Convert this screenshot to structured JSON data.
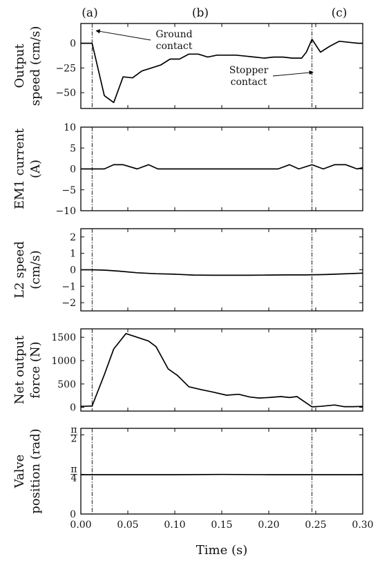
{
  "figure": {
    "xlabel": "Time (s)",
    "segment_labels": [
      "(a)",
      "(b)",
      "(c)"
    ],
    "xlim": [
      0.0,
      0.3
    ],
    "xticks": [
      0.0,
      0.05,
      0.1,
      0.15,
      0.2,
      0.25,
      0.3
    ],
    "xticklabels": [
      "0.00",
      "0.05",
      "0.10",
      "0.15",
      "0.20",
      "0.25",
      "0.30"
    ],
    "event_lines_x": [
      0.012,
      0.246
    ],
    "annotations": [
      {
        "text_lines": [
          "Ground",
          "contact"
        ],
        "arrow_to": [
          0.014,
          12
        ],
        "panel": 0
      },
      {
        "text_lines": [
          "Stopper",
          "contact"
        ],
        "arrow_to": [
          0.245,
          -30
        ],
        "panel": 0
      }
    ],
    "colors": {
      "line": "#000000",
      "axes": "#000000",
      "background": "#ffffff"
    }
  },
  "chart_data": [
    {
      "type": "line",
      "ylabel_lines": [
        "Output",
        "speed (cm/s)"
      ],
      "ylim": [
        -66,
        20
      ],
      "yticks": [
        0,
        -25,
        -50
      ],
      "yticklabels": [
        "0",
        "−25",
        "−50"
      ],
      "x": [
        0.0,
        0.012,
        0.025,
        0.035,
        0.045,
        0.055,
        0.065,
        0.075,
        0.085,
        0.095,
        0.105,
        0.115,
        0.125,
        0.135,
        0.145,
        0.155,
        0.165,
        0.175,
        0.185,
        0.195,
        0.205,
        0.215,
        0.225,
        0.235,
        0.24,
        0.246,
        0.255,
        0.265,
        0.275,
        0.285,
        0.295,
        0.3
      ],
      "y": [
        0,
        0,
        -53,
        -60,
        -34,
        -35,
        -28,
        -25,
        -22,
        -16,
        -16,
        -11,
        -11,
        -14,
        -12,
        -12,
        -12,
        -13,
        -14,
        -15,
        -14,
        -14,
        -15,
        -15,
        -9,
        4,
        -9,
        -3,
        2,
        1,
        0,
        0
      ]
    },
    {
      "type": "line",
      "ylabel_lines": [
        "EM1 current",
        "(A)"
      ],
      "ylim": [
        -10,
        10
      ],
      "yticks": [
        10,
        5,
        0,
        -5,
        -10
      ],
      "yticklabels": [
        "10",
        "5",
        "0",
        "−5",
        "−10"
      ],
      "x": [
        0.0,
        0.025,
        0.035,
        0.045,
        0.06,
        0.072,
        0.082,
        0.095,
        0.21,
        0.222,
        0.232,
        0.246,
        0.258,
        0.27,
        0.282,
        0.294,
        0.3
      ],
      "y": [
        0,
        0,
        1,
        1,
        0,
        1,
        0,
        0,
        0,
        1,
        0,
        1,
        0,
        1,
        1,
        0,
        0.3
      ]
    },
    {
      "type": "line",
      "ylabel_lines": [
        "L2 speed",
        "(cm/s)"
      ],
      "ylim": [
        -2.5,
        2.5
      ],
      "yticks": [
        2,
        1,
        0,
        -1,
        -2
      ],
      "yticklabels": [
        "2",
        "1",
        "0",
        "−1",
        "−2"
      ],
      "x": [
        0.0,
        0.012,
        0.025,
        0.04,
        0.06,
        0.08,
        0.1,
        0.12,
        0.14,
        0.16,
        0.18,
        0.2,
        0.22,
        0.24,
        0.26,
        0.28,
        0.3
      ],
      "y": [
        0,
        0,
        -0.02,
        -0.08,
        -0.18,
        -0.24,
        -0.27,
        -0.32,
        -0.33,
        -0.33,
        -0.33,
        -0.32,
        -0.31,
        -0.31,
        -0.29,
        -0.25,
        -0.2
      ]
    },
    {
      "type": "line",
      "ylabel_lines": [
        "Net output",
        "force (N)"
      ],
      "ylim": [
        -80,
        1680
      ],
      "yticks": [
        1500,
        1000,
        500,
        0
      ],
      "yticklabels": [
        "1500",
        "1000",
        "500",
        "0"
      ],
      "x": [
        0.0,
        0.012,
        0.025,
        0.035,
        0.048,
        0.06,
        0.072,
        0.08,
        0.093,
        0.103,
        0.115,
        0.128,
        0.14,
        0.155,
        0.168,
        0.18,
        0.19,
        0.2,
        0.213,
        0.222,
        0.23,
        0.246,
        0.255,
        0.27,
        0.28,
        0.29,
        0.3
      ],
      "y": [
        20,
        30,
        700,
        1250,
        1580,
        1500,
        1420,
        1300,
        820,
        680,
        440,
        380,
        330,
        260,
        280,
        220,
        200,
        210,
        230,
        210,
        230,
        10,
        20,
        50,
        15,
        15,
        20
      ]
    },
    {
      "type": "line",
      "ylabel_lines": [
        "Valve",
        "position (rad)"
      ],
      "ylim": [
        0,
        1.7
      ],
      "yticks": [
        1.5708,
        0.7854,
        0
      ],
      "yticklabels": [
        "π/2",
        "π/4",
        "0"
      ],
      "x": [
        0.0,
        0.05,
        0.1,
        0.15,
        0.2,
        0.25,
        0.3
      ],
      "y": [
        0.78,
        0.78,
        0.78,
        0.785,
        0.78,
        0.78,
        0.78
      ]
    }
  ]
}
